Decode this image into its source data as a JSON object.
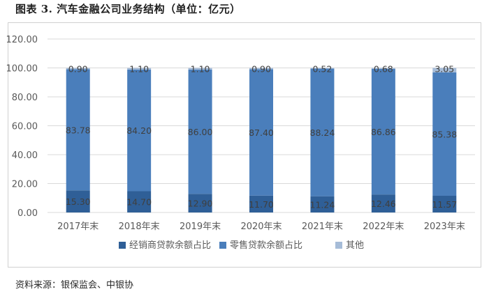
{
  "figure": {
    "title": "图表 3. 汽车金融公司业务结构（单位：亿元）",
    "source": "资料来源：银保监会、中银协"
  },
  "chart_data": {
    "type": "bar",
    "stacked": true,
    "categories": [
      "2017年末",
      "2018年末",
      "2019年末",
      "2020年末",
      "2021年末",
      "2022年末",
      "2023年末"
    ],
    "series": [
      {
        "name": "经销商贷款余额占比",
        "color": "#2f5f97",
        "values": [
          15.3,
          14.7,
          12.9,
          11.7,
          11.24,
          12.46,
          11.57
        ]
      },
      {
        "name": "零售贷款余额占比",
        "color": "#4a7ebb",
        "values": [
          83.78,
          84.2,
          86.0,
          87.4,
          88.24,
          86.86,
          85.38
        ]
      },
      {
        "name": "其他",
        "color": "#a6bcd8",
        "values": [
          0.9,
          1.1,
          1.1,
          0.9,
          0.52,
          0.68,
          3.05
        ]
      }
    ],
    "data_labels": {
      "经销商贷款余额占比": [
        "15.30",
        "14.70",
        "12.90",
        "11.70",
        "11.24",
        "12.46",
        "11.57"
      ],
      "零售贷款余额占比": [
        "83.78",
        "84.20",
        "86.00",
        "87.40",
        "88.24",
        "86.86",
        "85.38"
      ],
      "其他": [
        "0.90",
        "1.10",
        "1.10",
        "0.90",
        "0.52",
        "0.68",
        "3.05"
      ]
    },
    "yticks": [
      "0.00",
      "20.00",
      "40.00",
      "60.00",
      "80.00",
      "100.00",
      "120.00"
    ],
    "ylim": [
      0,
      120
    ],
    "grid": true,
    "legend": "bottom"
  }
}
